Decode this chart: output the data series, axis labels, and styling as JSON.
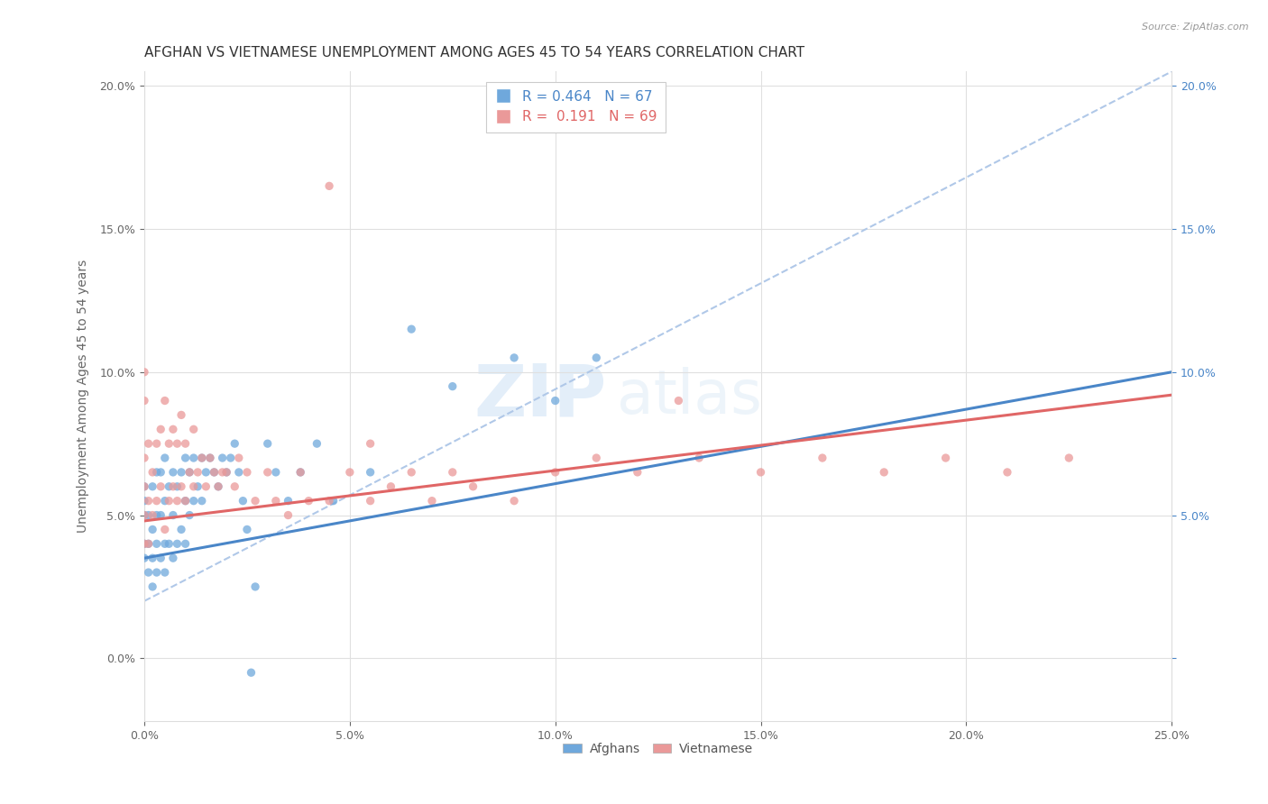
{
  "title": "AFGHAN VS VIETNAMESE UNEMPLOYMENT AMONG AGES 45 TO 54 YEARS CORRELATION CHART",
  "source": "Source: ZipAtlas.com",
  "ylabel": "Unemployment Among Ages 45 to 54 years",
  "afghan_color": "#6fa8dc",
  "vietnamese_color": "#ea9999",
  "afghan_line_color": "#4a86c8",
  "vietnamese_line_color": "#e06666",
  "dashed_line_color": "#b0c8e8",
  "afghan_R": 0.464,
  "afghan_N": 67,
  "vietnamese_R": 0.191,
  "vietnamese_N": 69,
  "legend_afghans": "Afghans",
  "legend_vietnamese": "Vietnamese",
  "background_color": "#ffffff",
  "grid_color": "#e0e0e0",
  "title_fontsize": 11,
  "axis_label_fontsize": 10,
  "tick_fontsize": 9,
  "xlim": [
    0.0,
    0.25
  ],
  "ylim": [
    -0.022,
    0.205
  ],
  "afghan_trend_x": [
    0.0,
    0.25
  ],
  "afghan_trend_y": [
    0.035,
    0.1
  ],
  "vietnamese_trend_x": [
    0.0,
    0.25
  ],
  "vietnamese_trend_y": [
    0.048,
    0.092
  ],
  "dashed_trend_x": [
    0.0,
    0.25
  ],
  "dashed_trend_y": [
    0.02,
    0.205
  ],
  "afghan_scatter_x": [
    0.0,
    0.0,
    0.0,
    0.0,
    0.0,
    0.001,
    0.001,
    0.001,
    0.002,
    0.002,
    0.002,
    0.002,
    0.003,
    0.003,
    0.003,
    0.003,
    0.004,
    0.004,
    0.004,
    0.005,
    0.005,
    0.005,
    0.005,
    0.006,
    0.006,
    0.007,
    0.007,
    0.007,
    0.008,
    0.008,
    0.009,
    0.009,
    0.01,
    0.01,
    0.01,
    0.011,
    0.011,
    0.012,
    0.012,
    0.013,
    0.014,
    0.014,
    0.015,
    0.016,
    0.017,
    0.018,
    0.019,
    0.02,
    0.021,
    0.022,
    0.023,
    0.024,
    0.025,
    0.026,
    0.027,
    0.03,
    0.032,
    0.035,
    0.038,
    0.042,
    0.046,
    0.055,
    0.065,
    0.075,
    0.09,
    0.1,
    0.11
  ],
  "afghan_scatter_y": [
    0.035,
    0.04,
    0.05,
    0.055,
    0.06,
    0.03,
    0.04,
    0.05,
    0.025,
    0.035,
    0.045,
    0.06,
    0.03,
    0.04,
    0.05,
    0.065,
    0.035,
    0.05,
    0.065,
    0.03,
    0.04,
    0.055,
    0.07,
    0.04,
    0.06,
    0.035,
    0.05,
    0.065,
    0.04,
    0.06,
    0.045,
    0.065,
    0.04,
    0.055,
    0.07,
    0.05,
    0.065,
    0.055,
    0.07,
    0.06,
    0.055,
    0.07,
    0.065,
    0.07,
    0.065,
    0.06,
    0.07,
    0.065,
    0.07,
    0.075,
    0.065,
    0.055,
    0.045,
    -0.005,
    0.025,
    0.075,
    0.065,
    0.055,
    0.065,
    0.075,
    0.055,
    0.065,
    0.115,
    0.095,
    0.105,
    0.09,
    0.105
  ],
  "vietnamese_scatter_x": [
    0.0,
    0.0,
    0.0,
    0.0,
    0.0,
    0.0,
    0.001,
    0.001,
    0.001,
    0.002,
    0.002,
    0.003,
    0.003,
    0.004,
    0.004,
    0.005,
    0.005,
    0.006,
    0.006,
    0.007,
    0.007,
    0.008,
    0.008,
    0.009,
    0.009,
    0.01,
    0.01,
    0.011,
    0.012,
    0.012,
    0.013,
    0.014,
    0.015,
    0.016,
    0.017,
    0.018,
    0.019,
    0.02,
    0.022,
    0.023,
    0.025,
    0.027,
    0.03,
    0.032,
    0.035,
    0.038,
    0.04,
    0.045,
    0.05,
    0.055,
    0.06,
    0.065,
    0.07,
    0.075,
    0.08,
    0.09,
    0.1,
    0.11,
    0.12,
    0.135,
    0.15,
    0.165,
    0.18,
    0.195,
    0.21,
    0.225,
    0.045,
    0.055,
    0.13
  ],
  "vietnamese_scatter_y": [
    0.04,
    0.05,
    0.06,
    0.07,
    0.09,
    0.1,
    0.04,
    0.055,
    0.075,
    0.05,
    0.065,
    0.055,
    0.075,
    0.06,
    0.08,
    0.045,
    0.09,
    0.055,
    0.075,
    0.06,
    0.08,
    0.055,
    0.075,
    0.06,
    0.085,
    0.055,
    0.075,
    0.065,
    0.06,
    0.08,
    0.065,
    0.07,
    0.06,
    0.07,
    0.065,
    0.06,
    0.065,
    0.065,
    0.06,
    0.07,
    0.065,
    0.055,
    0.065,
    0.055,
    0.05,
    0.065,
    0.055,
    0.055,
    0.065,
    0.055,
    0.06,
    0.065,
    0.055,
    0.065,
    0.06,
    0.055,
    0.065,
    0.07,
    0.065,
    0.07,
    0.065,
    0.07,
    0.065,
    0.07,
    0.065,
    0.07,
    0.165,
    0.075,
    0.09
  ]
}
